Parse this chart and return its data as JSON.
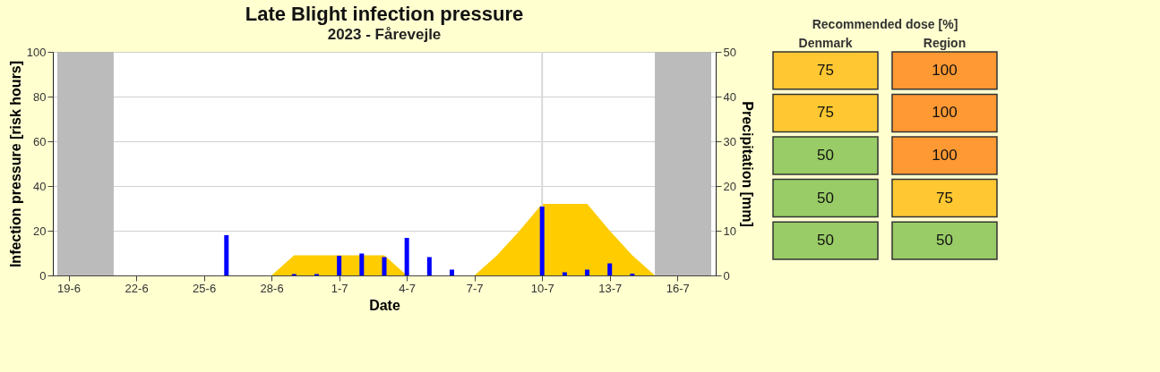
{
  "chart_data": [
    {
      "type": "area",
      "title": "Late Blight infection pressure",
      "subtitle": "2023 - Fårevejle",
      "xlabel": "Date",
      "ylabel": "Infection pressure [risk hours]",
      "y2label": "Precipitation [mm]",
      "xlim": [
        "--06-18T12:00",
        "--07-17T12:00"
      ],
      "xticks": [
        {
          "value": "--06-19",
          "label": "19-6"
        },
        {
          "value": "--06-22",
          "label": "22-6"
        },
        {
          "value": "--06-25",
          "label": "25-6"
        },
        {
          "value": "--06-28",
          "label": "28-6"
        },
        {
          "value": "--07-01",
          "label": "1-7"
        },
        {
          "value": "--07-04",
          "label": "4-7"
        },
        {
          "value": "--07-07",
          "label": "7-7"
        },
        {
          "value": "--07-10",
          "label": "10-7"
        },
        {
          "value": "--07-13",
          "label": "13-7"
        },
        {
          "value": "--07-16",
          "label": "16-7"
        }
      ],
      "ylim": [
        0,
        100
      ],
      "yticks": [
        0,
        20,
        40,
        60,
        80,
        100
      ],
      "y2lim": [
        0,
        50
      ],
      "y2ticks": [
        0,
        10,
        20,
        30,
        40,
        50
      ],
      "grid": "y",
      "series": [
        {
          "type": "area",
          "color": "#ffcc00",
          "x": [
            "--06-28",
            "--06-29",
            "--06-30",
            "--07-01",
            "--07-02",
            "--07-03",
            "--07-04",
            "--07-05",
            "--07-06",
            "--07-07",
            "--07-08",
            "--07-09",
            "--07-10",
            "--07-11",
            "--07-12",
            "--07-13",
            "--07-14",
            "--07-15"
          ],
          "values": [
            0,
            9,
            9,
            9,
            9,
            9,
            0,
            0,
            0,
            0,
            9,
            20,
            32,
            32,
            32,
            20,
            9,
            0
          ]
        },
        {
          "type": "bar",
          "axis": "y2",
          "color": "#0000ff",
          "x": [
            "--06-26",
            "--06-29",
            "--06-30",
            "--07-01",
            "--07-02",
            "--07-03",
            "--07-04",
            "--07-05",
            "--07-06",
            "--07-10",
            "--07-11",
            "--07-12",
            "--07-13",
            "--07-14"
          ],
          "values": [
            9,
            0.3,
            0.3,
            4.4,
            4.9,
            4.1,
            8.4,
            4.1,
            1.3,
            15.4,
            0.7,
            1.3,
            2.7,
            0.4
          ]
        }
      ],
      "bands": [
        {
          "axis": "x",
          "from": "--06-18T12:00",
          "to": "--06-21",
          "color": "#bbbbbb"
        },
        {
          "axis": "x",
          "from": "--07-15",
          "to": "--07-17T12:00",
          "color": "#bbbbbb"
        }
      ],
      "ref_lines": [
        {
          "axis": "x",
          "value": "--07-10",
          "color": "#d9d9d9"
        }
      ]
    },
    {
      "type": "heatmap",
      "title": "Recommended dose [%]",
      "categories": [
        "Denmark",
        "Region"
      ],
      "y_categories": [
        null,
        null,
        null,
        null,
        null
      ],
      "cells": [
        [
          75,
          100
        ],
        [
          75,
          100
        ],
        [
          50,
          100
        ],
        [
          50,
          75
        ],
        [
          50,
          50
        ]
      ],
      "colors": [
        [
          "#ffc832",
          "#ff9933"
        ],
        [
          "#ffc832",
          "#ff9933"
        ],
        [
          "#99cc66",
          "#ff9933"
        ],
        [
          "#99cc66",
          "#ffc832"
        ],
        [
          "#99cc66",
          "#99cc66"
        ]
      ],
      "data_labels": true
    }
  ]
}
